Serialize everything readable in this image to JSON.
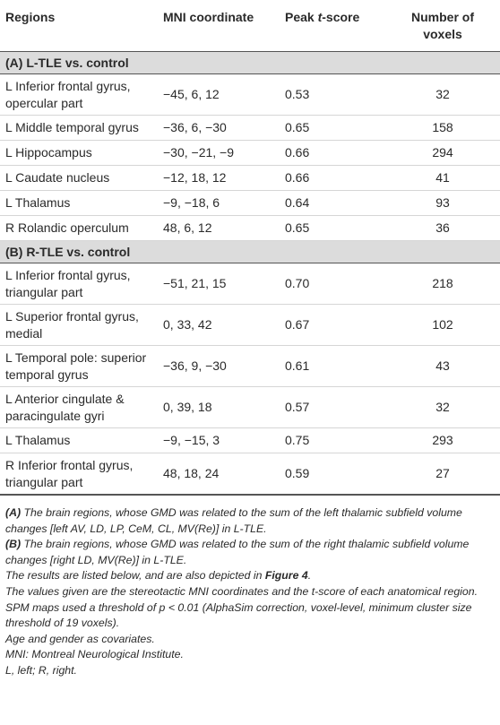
{
  "table": {
    "headers": {
      "regions": "Regions",
      "mni": "MNI coordinate",
      "peak_prefix": "Peak ",
      "peak_t": "t",
      "peak_suffix": "-score",
      "voxels": "Number of voxels"
    },
    "section_a": "(A) L-TLE vs. control",
    "section_b": "(B) R-TLE vs. control",
    "rows_a": [
      {
        "region": "L Inferior frontal gyrus, opercular part",
        "mni": "−45, 6, 12",
        "peak": "0.53",
        "voxels": "32"
      },
      {
        "region": "L Middle temporal gyrus",
        "mni": "−36, 6, −30",
        "peak": "0.65",
        "voxels": "158"
      },
      {
        "region": "L Hippocampus",
        "mni": "−30, −21, −9",
        "peak": "0.66",
        "voxels": "294"
      },
      {
        "region": "L Caudate nucleus",
        "mni": "−12, 18, 12",
        "peak": "0.66",
        "voxels": "41"
      },
      {
        "region": "L Thalamus",
        "mni": "−9, −18, 6",
        "peak": "0.64",
        "voxels": "93"
      },
      {
        "region": "R Rolandic operculum",
        "mni": "48, 6, 12",
        "peak": "0.65",
        "voxels": "36"
      }
    ],
    "rows_b": [
      {
        "region": "L Inferior frontal gyrus, triangular part",
        "mni": "−51, 21, 15",
        "peak": "0.70",
        "voxels": "218"
      },
      {
        "region": "L Superior frontal gyrus, medial",
        "mni": "0, 33, 42",
        "peak": "0.67",
        "voxels": "102"
      },
      {
        "region": "L Temporal pole: superior temporal gyrus",
        "mni": "−36, 9, −30",
        "peak": "0.61",
        "voxels": "43"
      },
      {
        "region": "L Anterior cingulate & paracingulate gyri",
        "mni": "0, 39, 18",
        "peak": "0.57",
        "voxels": "32"
      },
      {
        "region": "L Thalamus",
        "mni": "−9, −15, 3",
        "peak": "0.75",
        "voxels": "293"
      },
      {
        "region": "R Inferior frontal gyrus, triangular part",
        "mni": "48, 18, 24",
        "peak": "0.59",
        "voxels": "27"
      }
    ]
  },
  "notes": {
    "a_label": "(A)",
    "a_text": " The brain regions, whose GMD was related to the sum of the left thalamic subfield volume changes [left AV, LD, LP, CeM, CL, MV(Re)] in L-TLE.",
    "b_label": "(B)",
    "b_text": " The brain regions, whose GMD was related to the sum of the right thalamic subfield volume changes [right LD, MV(Re)] in L-TLE.",
    "results_text": "The results are listed below, and are also depicted in ",
    "figure_ref": "Figure 4",
    "results_end": ".",
    "values_text": "The values given are the stereotactic MNI coordinates and the t-score of each anatomical region. SPM maps used a threshold of p < 0.01 (AlphaSim correction, voxel-level, minimum cluster size threshold of 19 voxels).",
    "covariates": "Age and gender as covariates.",
    "mni_abbrev": "MNI: Montreal Neurological Institute.",
    "lr_abbrev": "L, left; R, right."
  }
}
